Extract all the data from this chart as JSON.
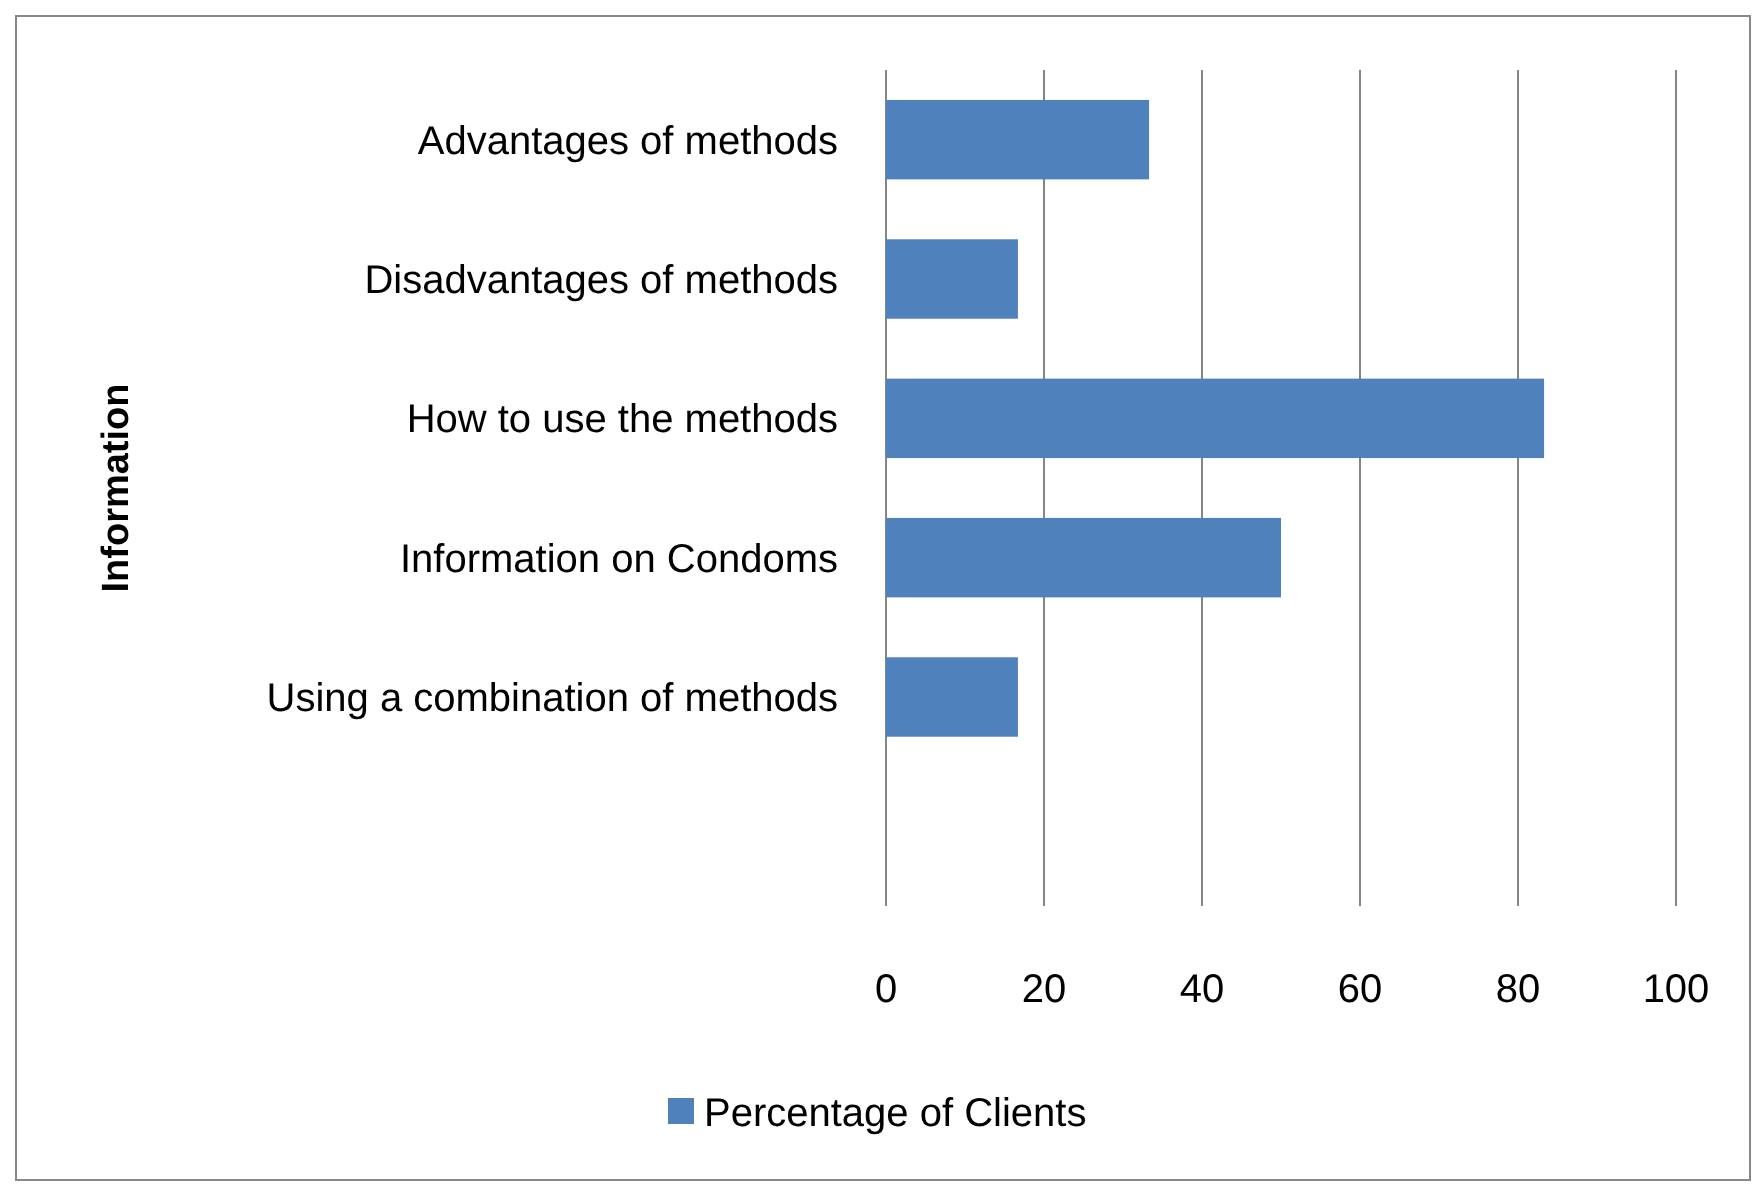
{
  "chart_data": {
    "type": "bar",
    "orientation": "horizontal",
    "ylabel": "Information",
    "categories": [
      "Advantages of methods",
      "Disadvantages of methods",
      "How to use the methods",
      "Information on Condoms",
      "Using a combination of methods",
      null
    ],
    "series": [
      {
        "name": "Percentage of Clients",
        "color": "#4f81bd",
        "values": [
          33.3,
          16.7,
          83.3,
          50,
          16.7,
          null
        ]
      }
    ],
    "xlim": [
      0,
      100
    ],
    "xticks": [
      0,
      20,
      40,
      60,
      80,
      100
    ],
    "grid": "x",
    "legend": "bottom"
  }
}
